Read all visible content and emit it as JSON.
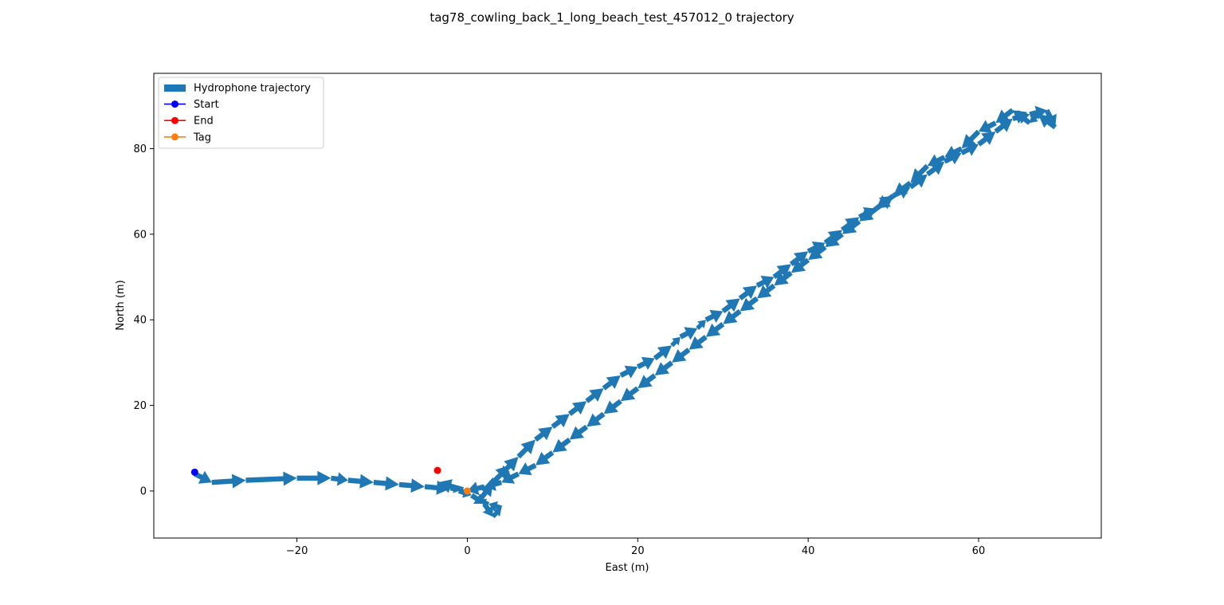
{
  "chart_data": {
    "type": "line",
    "title": "tag78_cowling_back_1_long_beach_test_457012_0 trajectory",
    "xlabel": "East (m)",
    "ylabel": "North (m)",
    "xlim": [
      -36.8,
      74.4
    ],
    "ylim": [
      -11.0,
      97.6
    ],
    "xticks": [
      -20,
      0,
      20,
      40,
      60
    ],
    "yticks": [
      0,
      20,
      40,
      60,
      80
    ],
    "xtick_labels": [
      "−20",
      "0",
      "20",
      "40",
      "60"
    ],
    "ytick_labels": [
      "0",
      "20",
      "40",
      "60",
      "80"
    ],
    "grid": false,
    "legend_position": "top-left",
    "legend": [
      {
        "label": "Hydrophone trajectory",
        "kind": "patch",
        "color": "#1f77b4"
      },
      {
        "label": "Start",
        "kind": "line-marker",
        "color": "#0000ff"
      },
      {
        "label": "End",
        "kind": "line-marker",
        "color": "#ff0000"
      },
      {
        "label": "Tag",
        "kind": "line-marker",
        "color": "#ff7f0e"
      }
    ],
    "series": [
      {
        "name": "Hydrophone trajectory",
        "style": "arrows",
        "color": "#1f77b4",
        "x": [
          -32,
          -30,
          -26,
          -20,
          -16,
          -14,
          -11,
          -8,
          -5,
          -2,
          -1,
          0.5,
          2,
          3,
          4,
          2.5,
          1.5,
          3,
          5,
          4,
          6,
          8,
          10,
          12,
          14,
          16,
          18,
          20,
          22,
          24,
          25,
          27,
          28,
          30,
          32,
          34,
          36,
          38,
          40,
          42,
          44,
          46,
          48,
          50,
          52,
          54,
          56,
          58,
          60,
          62,
          64,
          66,
          68,
          69,
          67,
          66,
          64,
          62,
          60,
          58,
          56,
          54,
          52,
          50,
          48,
          46,
          44,
          42,
          40,
          38,
          36,
          34,
          32,
          30,
          28,
          26,
          24,
          22,
          20,
          18,
          16,
          14,
          12,
          10,
          8,
          6,
          4,
          2,
          0,
          -0.5,
          -3.5
        ],
        "y": [
          4,
          2,
          2.5,
          3,
          3,
          2.5,
          2,
          1.5,
          1,
          0.5,
          0,
          -1,
          -3,
          -6,
          -4,
          -3,
          -2,
          2,
          6,
          4,
          8,
          12,
          15,
          18,
          21,
          24,
          27,
          29,
          31,
          34,
          36,
          38,
          40,
          42,
          45,
          48,
          50,
          53,
          56,
          58,
          61,
          64,
          66,
          69,
          71,
          74,
          77,
          79,
          81,
          84,
          87,
          88,
          89,
          85,
          88,
          86,
          89,
          86,
          84,
          80,
          78,
          76,
          72,
          69,
          66,
          63,
          60,
          57,
          54,
          51,
          48,
          45,
          42,
          39,
          36,
          33,
          30,
          27,
          24,
          21,
          18,
          15,
          12,
          9,
          6,
          4,
          2,
          1,
          0,
          0.3,
          2
        ]
      },
      {
        "name": "Start",
        "color": "#0000ff",
        "x": [
          -32
        ],
        "y": [
          4.4
        ]
      },
      {
        "name": "End",
        "color": "#ff0000",
        "x": [
          -3.5
        ],
        "y": [
          4.8
        ]
      },
      {
        "name": "Tag",
        "color": "#ff7f0e",
        "x": [
          0
        ],
        "y": [
          0
        ]
      }
    ]
  }
}
